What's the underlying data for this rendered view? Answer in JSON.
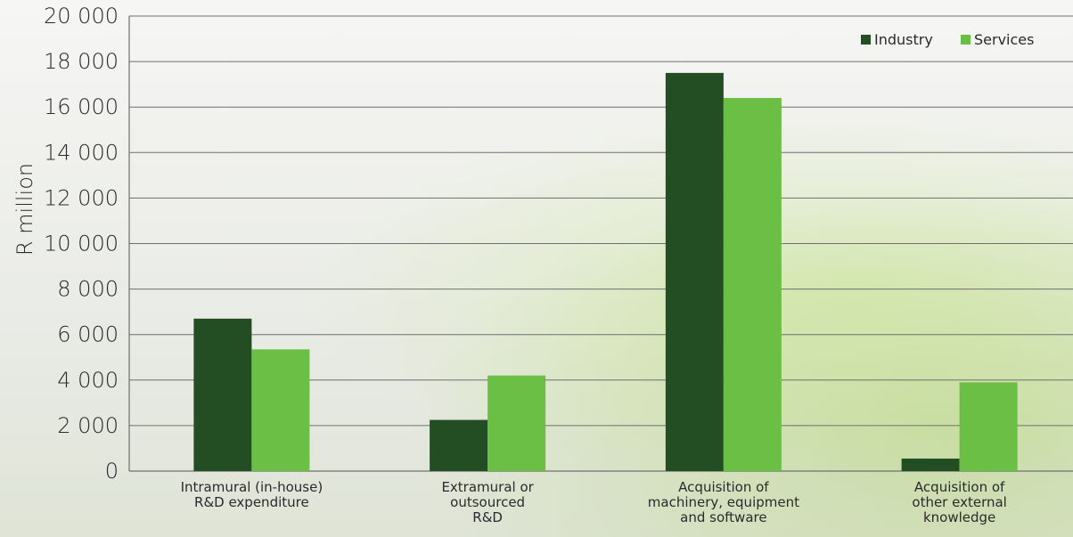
{
  "chart_data": {
    "type": "bar",
    "title": "",
    "xlabel": "",
    "ylabel": "R million",
    "ylim": [
      0,
      20000
    ],
    "yticks": [
      0,
      2000,
      4000,
      6000,
      8000,
      10000,
      12000,
      14000,
      16000,
      18000,
      20000
    ],
    "ytick_labels": [
      "0",
      "2 000",
      "4 000",
      "6 000",
      "8 000",
      "10 000",
      "12 000",
      "14 000",
      "16 000",
      "18 000",
      "20 000"
    ],
    "grid": true,
    "legend_position": "top-right",
    "categories": [
      [
        "Intramural (in-house)",
        "R&D expenditure"
      ],
      [
        "Extramural or",
        "outsourced",
        "R&D"
      ],
      [
        "Acquisition of",
        "machinery, equipment",
        "and software"
      ],
      [
        "Acquisition of",
        "other external",
        "knowledge"
      ]
    ],
    "series": [
      {
        "name": "Industry",
        "color": "#234d23",
        "values": [
          6700,
          2250,
          17500,
          550
        ]
      },
      {
        "name": "Services",
        "color": "#6cbf45",
        "values": [
          5350,
          4200,
          16400,
          3900
        ]
      }
    ]
  }
}
